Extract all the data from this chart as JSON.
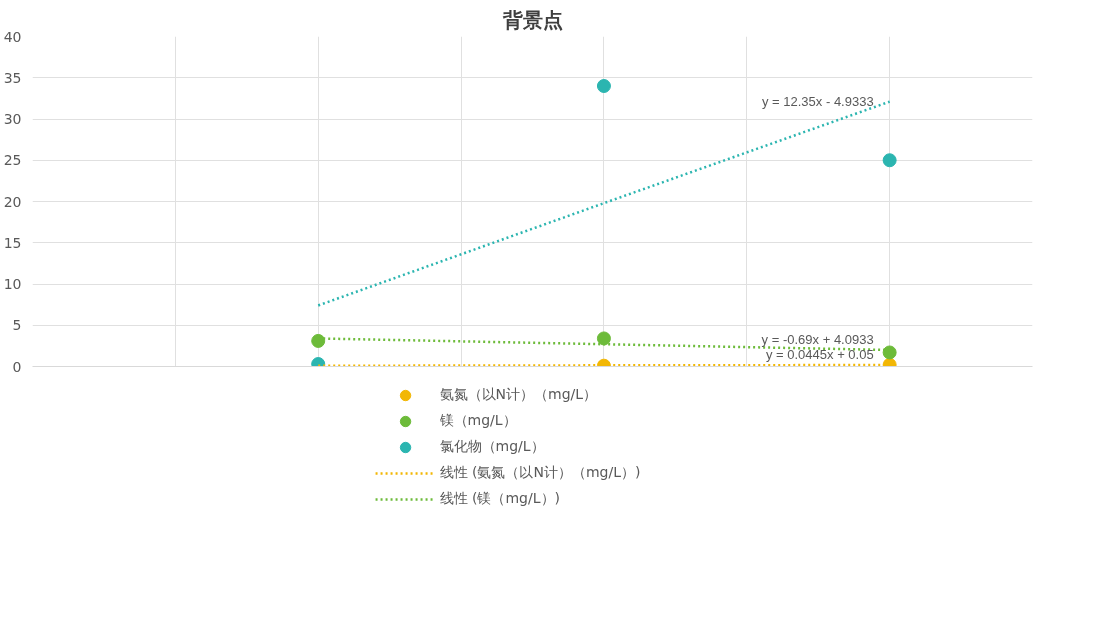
{
  "chart_data": {
    "type": "scatter",
    "title": "背景点",
    "categories": [
      null,
      null,
      null
    ],
    "ylim": [
      0,
      40
    ],
    "yticks": [
      0,
      5,
      10,
      15,
      20,
      25,
      30,
      35,
      40
    ],
    "tick_labels": "y",
    "grid": true,
    "legend": "bottom",
    "marker": "circle",
    "series": [
      {
        "name": "氨氮（以N计）（mg/L）",
        "color": "#f2b705",
        "values": [
          null,
          0.1,
          0.2
        ]
      },
      {
        "name": "镁（mg/L）",
        "color": "#6dbb3a",
        "values": [
          3.1,
          3.4,
          1.7
        ]
      },
      {
        "name": "氯化物（mg/L）",
        "color": "#2bb5b0",
        "values": [
          0.3,
          34,
          25
        ]
      },
      {
        "name": "线性 (氨氮（以N计）（mg/L）)",
        "type": "line",
        "marker": "none",
        "line_style": "dotted",
        "color": "#f2b705",
        "values": [
          0.09,
          0.14,
          0.18
        ]
      },
      {
        "name": "线性 (镁（mg/L）)",
        "type": "line",
        "marker": "none",
        "line_style": "dotted",
        "color": "#6dbb3a",
        "values": [
          3.4,
          2.7,
          2.0
        ]
      },
      {
        "type": "line",
        "marker": "none",
        "line_style": "dotted",
        "color": "#2bb5b0",
        "values": [
          7.4,
          19.8,
          32.1
        ]
      }
    ],
    "annotations": [
      "y = 0.0445x + 0.05",
      "y = -0.69x + 4.0933",
      "y = 12.35x - 4.9333"
    ]
  }
}
